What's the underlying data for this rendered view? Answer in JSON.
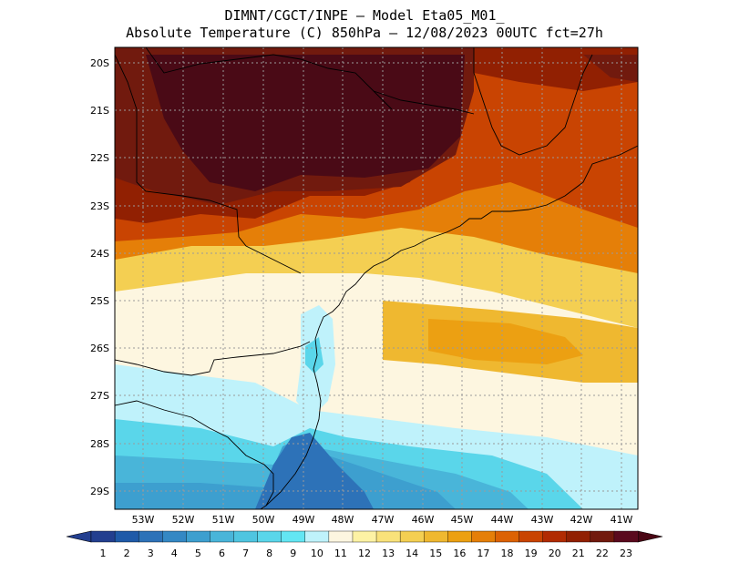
{
  "header": {
    "line1": "DIMNT/CGCT/INPE —  Model Eta05_M01_",
    "line2": "Absolute Temperature (C) 850hPa —  12/08/2023 00UTC fct=27h"
  },
  "axes": {
    "lat_labels": [
      "20S",
      "21S",
      "22S",
      "23S",
      "24S",
      "25S",
      "26S",
      "27S",
      "28S",
      "29S"
    ],
    "lon_labels": [
      "53W",
      "52W",
      "51W",
      "50W",
      "49W",
      "48W",
      "47W",
      "46W",
      "45W",
      "44W",
      "43W",
      "42W",
      "41W"
    ]
  },
  "colorbar": {
    "labels": [
      "1",
      "2",
      "3",
      "4",
      "5",
      "6",
      "7",
      "8",
      "9",
      "10",
      "11",
      "12",
      "13",
      "14",
      "15",
      "16",
      "17",
      "18",
      "19",
      "20",
      "21",
      "22",
      "23"
    ],
    "colors": [
      "#233f8f",
      "#1f5aa8",
      "#2d72b8",
      "#3488c4",
      "#3d9fcf",
      "#49b5d9",
      "#4fc5e0",
      "#5ad6ea",
      "#63e6f3",
      "#bff2fb",
      "#fdf6e0",
      "#fdf2a4",
      "#f9e27a",
      "#f4cf52",
      "#efb830",
      "#eca012",
      "#e57f08",
      "#dc6204",
      "#c94402",
      "#b12b02",
      "#912002",
      "#711a0e",
      "#5a0a1e"
    ],
    "low_color": "#233f8f",
    "high_color": "#4a0614"
  }
}
